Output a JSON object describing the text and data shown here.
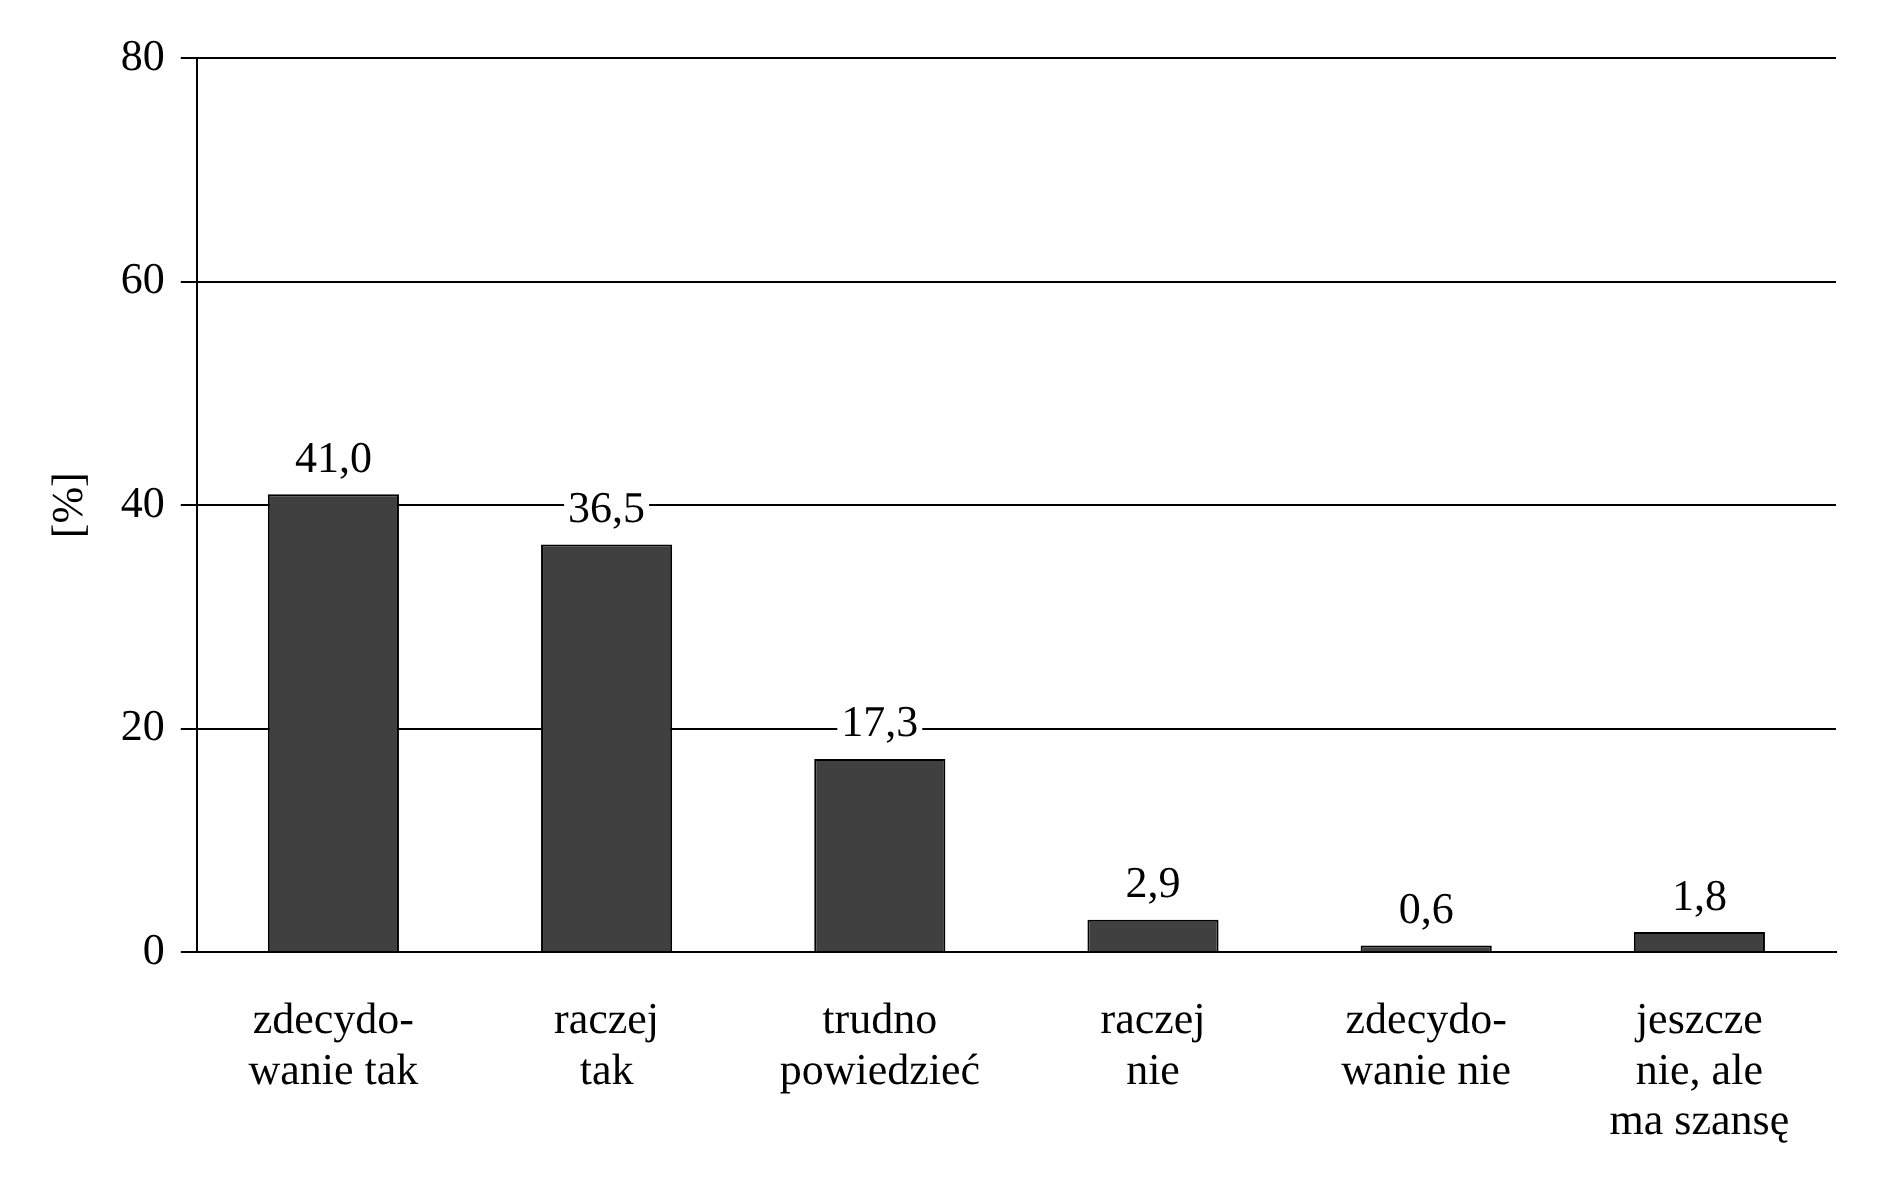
{
  "chart_data": {
    "type": "bar",
    "ylabel": "[%]",
    "categories": [
      "zdecydo-\nwanie tak",
      "raczej\ntak",
      "trudno\npowiedzieć",
      "raczej\nnie",
      "zdecydo-\nwanie nie",
      "jeszcze\nnie, ale\nma szansę"
    ],
    "values": [
      41.0,
      36.5,
      17.3,
      2.9,
      0.6,
      1.8
    ],
    "value_labels": [
      "41,0",
      "36,5",
      "17,3",
      "2,9",
      "0,6",
      "1,8"
    ],
    "color": "#404040",
    "ylim": [
      0,
      80
    ],
    "yticks": [
      0,
      20,
      40,
      60,
      80
    ],
    "grid": "y",
    "legend": false
  }
}
